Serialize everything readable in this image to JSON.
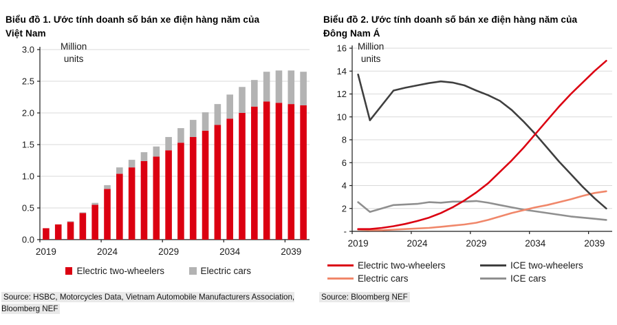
{
  "chart_data": [
    {
      "id": "vietnam-ev-sales",
      "type": "bar",
      "stacked": true,
      "title": "Biểu đồ 1. Ước tính doanh số bán xe điện hàng năm của\nViệt Nam",
      "unit_label": "Million\nunits",
      "source": "Source: HSBC, Motorcycles Data, Vietnam Automobile Manufacturers Association,\nBloomberg NEF",
      "categories": [
        2019,
        2020,
        2021,
        2022,
        2023,
        2024,
        2025,
        2026,
        2027,
        2028,
        2029,
        2030,
        2031,
        2032,
        2033,
        2034,
        2035,
        2036,
        2037,
        2038,
        2039,
        2040
      ],
      "series": [
        {
          "name": "Electric two-wheelers",
          "color": "#db0011",
          "values": [
            0.18,
            0.24,
            0.28,
            0.42,
            0.55,
            0.8,
            1.04,
            1.14,
            1.24,
            1.31,
            1.41,
            1.53,
            1.62,
            1.72,
            1.81,
            1.91,
            2.0,
            2.1,
            2.18,
            2.16,
            2.14,
            2.12
          ]
        },
        {
          "name": "Electric cars",
          "color": "#b3b3b3",
          "values": [
            0.0,
            0.0,
            0.01,
            0.01,
            0.03,
            0.06,
            0.1,
            0.12,
            0.14,
            0.16,
            0.21,
            0.23,
            0.27,
            0.29,
            0.33,
            0.38,
            0.41,
            0.42,
            0.47,
            0.51,
            0.53,
            0.53
          ]
        }
      ],
      "x_ticks": [
        2019,
        2024,
        2029,
        2034,
        2039
      ],
      "y_ticks": [
        {
          "label": "3.0",
          "v": 3.0
        },
        {
          "label": "2.5",
          "v": 2.5
        },
        {
          "label": "2.0",
          "v": 2.0
        },
        {
          "label": "1.5",
          "v": 1.5
        },
        {
          "label": "1.0",
          "v": 1.0
        },
        {
          "label": "0.5",
          "v": 0.5
        },
        {
          "label": "0.0",
          "v": 0.0
        }
      ],
      "ylim": [
        0,
        3
      ],
      "grid": true,
      "legend_position": "bottom"
    },
    {
      "id": "southeast-asia-ev-sales",
      "type": "line",
      "title": "Biểu đồ 2. Ước tính doanh số bán xe điện hàng năm của\nĐông Nam Á",
      "unit_label": "Million\nunits",
      "source": "Source: Bloomberg NEF",
      "categories": [
        2019,
        2020,
        2021,
        2022,
        2023,
        2024,
        2025,
        2026,
        2027,
        2028,
        2029,
        2030,
        2031,
        2032,
        2033,
        2034,
        2035,
        2036,
        2037,
        2038,
        2039,
        2040
      ],
      "series": [
        {
          "name": "Electric two-wheelers",
          "color": "#db0011",
          "values": [
            0.2,
            0.2,
            0.3,
            0.45,
            0.65,
            0.9,
            1.2,
            1.6,
            2.1,
            2.7,
            3.4,
            4.2,
            5.2,
            6.2,
            7.3,
            8.5,
            9.7,
            10.9,
            12.0,
            13.0,
            14.0,
            14.9
          ]
        },
        {
          "name": "ICE two-wheelers",
          "color": "#3f3f3f",
          "values": [
            13.7,
            9.7,
            11.0,
            12.3,
            12.55,
            12.75,
            12.95,
            13.1,
            13.0,
            12.75,
            12.3,
            11.9,
            11.4,
            10.6,
            9.6,
            8.5,
            7.3,
            6.1,
            5.0,
            3.9,
            2.9,
            2.0
          ]
        },
        {
          "name": "Electric cars",
          "color": "#f0876a",
          "values": [
            0.15,
            0.1,
            0.1,
            0.15,
            0.2,
            0.25,
            0.3,
            0.4,
            0.5,
            0.6,
            0.75,
            1.0,
            1.3,
            1.6,
            1.85,
            2.1,
            2.3,
            2.55,
            2.8,
            3.1,
            3.35,
            3.5
          ]
        },
        {
          "name": "ICE cars",
          "color": "#8f8f8f",
          "values": [
            2.55,
            1.7,
            2.0,
            2.3,
            2.35,
            2.4,
            2.55,
            2.5,
            2.6,
            2.6,
            2.65,
            2.5,
            2.3,
            2.1,
            1.9,
            1.75,
            1.6,
            1.45,
            1.3,
            1.2,
            1.1,
            1.0
          ]
        }
      ],
      "x_ticks": [
        2019,
        2024,
        2029,
        2034,
        2039
      ],
      "y_ticks": [
        {
          "label": "16",
          "v": 16
        },
        {
          "label": "14",
          "v": 14
        },
        {
          "label": "12",
          "v": 12
        },
        {
          "label": "10",
          "v": 10
        },
        {
          "label": "8",
          "v": 8
        },
        {
          "label": "6",
          "v": 6
        },
        {
          "label": "4",
          "v": 4
        },
        {
          "label": "2",
          "v": 2
        },
        {
          "label": "-",
          "v": 0
        }
      ],
      "ylim": [
        0,
        16
      ],
      "grid": true,
      "legend_position": "bottom"
    }
  ]
}
